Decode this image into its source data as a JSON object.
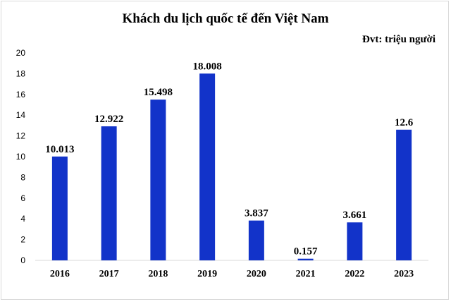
{
  "chart_data": {
    "type": "bar",
    "title": "Khách du lịch quốc tế đến Việt Nam",
    "unit_label": "Đvt: triệu người",
    "categories": [
      "2016",
      "2017",
      "2018",
      "2019",
      "2020",
      "2021",
      "2022",
      "2023"
    ],
    "values": [
      10.013,
      12.922,
      15.498,
      18.008,
      3.837,
      0.157,
      3.661,
      12.6
    ],
    "data_labels": [
      "10.013",
      "12.922",
      "15.498",
      "18.008",
      "3.837",
      "0.157",
      "3.661",
      "12.6"
    ],
    "ylim": [
      0,
      20
    ],
    "yticks": [
      0,
      2,
      4,
      6,
      8,
      10,
      12,
      14,
      16,
      18,
      20
    ],
    "grid": false,
    "bar_color": "#1233c9"
  }
}
